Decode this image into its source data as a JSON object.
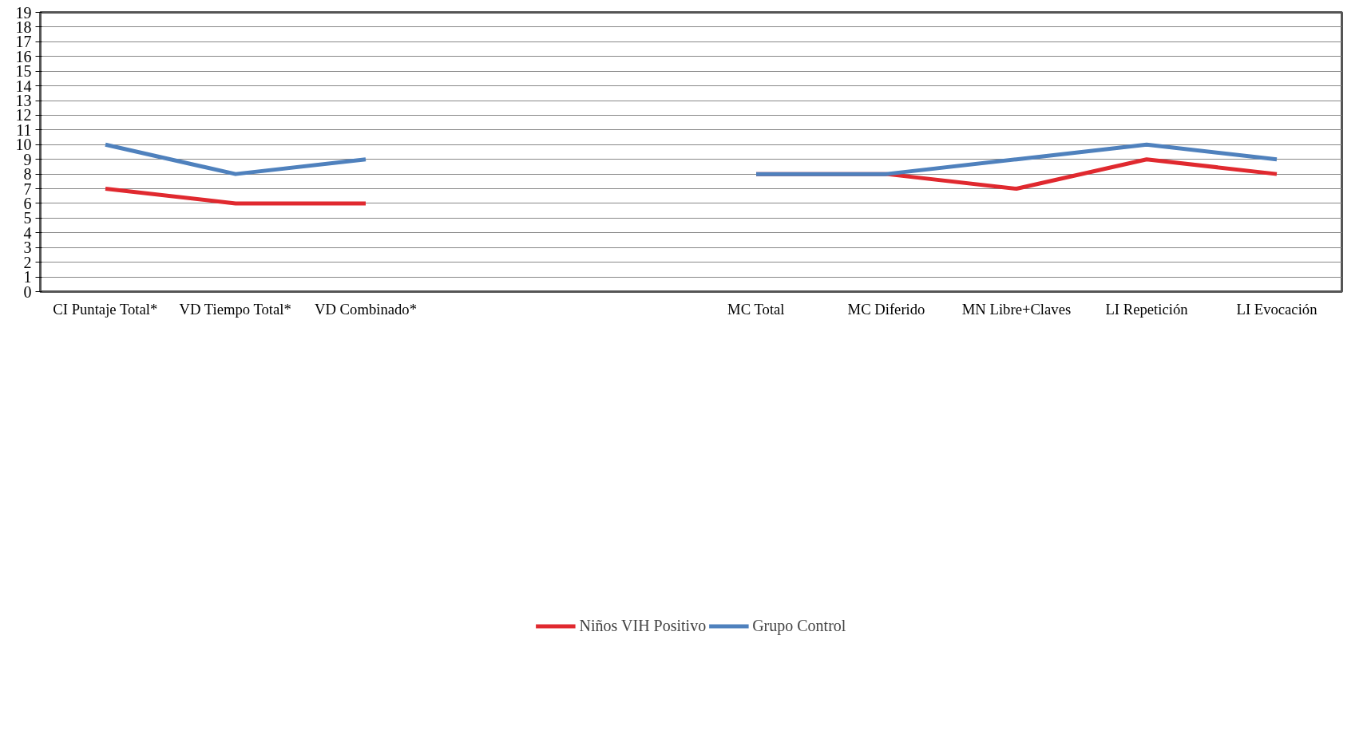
{
  "chart_data": {
    "type": "line",
    "categories": [
      "CI Puntaje Total*",
      "VD Tiempo Total*",
      "VD Combinado*",
      null,
      null,
      "MC Total",
      "MC Diferido",
      "MN Libre+Claves",
      "LI Repetición",
      "LI Evocación"
    ],
    "series": [
      {
        "name": "Niños VIH Positivo",
        "color": "#e0292f",
        "values": [
          7,
          6,
          6,
          null,
          null,
          8,
          8,
          7,
          9,
          8
        ]
      },
      {
        "name": "Grupo Control",
        "color": "#4f81bd",
        "values": [
          10,
          8,
          9,
          null,
          null,
          8,
          8,
          9,
          10,
          9
        ]
      }
    ],
    "ylim": [
      0,
      19
    ],
    "yticks": [
      0,
      1,
      2,
      3,
      4,
      5,
      6,
      7,
      8,
      9,
      10,
      11,
      12,
      13,
      14,
      15,
      16,
      17,
      18,
      19
    ],
    "grid": "y",
    "legend": "bottom",
    "marker": "none",
    "line_style": "solid"
  }
}
